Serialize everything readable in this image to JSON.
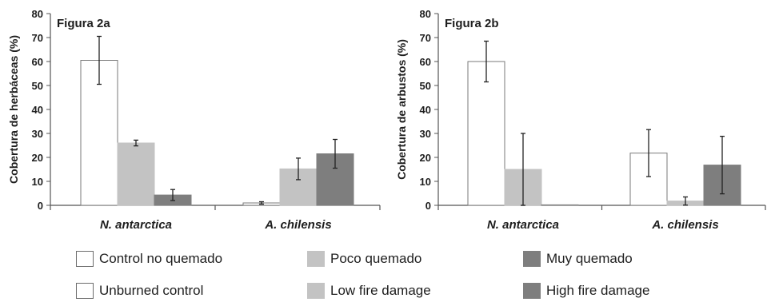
{
  "chart_data": [
    {
      "type": "bar",
      "title": "Figura 2a",
      "xlabel": "",
      "ylabel": "Cobertura de herbáceas (%)",
      "ylim": [
        0,
        80
      ],
      "yticks": [
        "0",
        "10",
        "20",
        "30",
        "40",
        "50",
        "60",
        "70",
        "80"
      ],
      "categories": [
        "N. antarctica",
        "A. chilensis"
      ],
      "series": [
        {
          "name": "Control no quemado",
          "values": [
            60.5,
            1.0
          ],
          "errors": [
            10.0,
            0.5
          ],
          "color": "#ffffff"
        },
        {
          "name": "Poco quemado",
          "values": [
            26.0,
            15.2
          ],
          "errors": [
            1.2,
            4.5
          ],
          "color": "#c3c3c3"
        },
        {
          "name": "Muy quemado",
          "values": [
            4.3,
            21.5
          ],
          "errors": [
            2.3,
            6.0
          ],
          "color": "#7e7e7e"
        }
      ],
      "grid": false
    },
    {
      "type": "bar",
      "title": "Figura 2b",
      "xlabel": "",
      "ylabel": "Cobertura de arbustos (%)",
      "ylim": [
        0,
        80
      ],
      "yticks": [
        "0",
        "10",
        "20",
        "30",
        "40",
        "50",
        "60",
        "70",
        "80"
      ],
      "categories": [
        "N. antarctica",
        "A. chilensis"
      ],
      "series": [
        {
          "name": "Control no quemado",
          "values": [
            60.0,
            21.8
          ],
          "errors": [
            8.5,
            9.8
          ],
          "color": "#ffffff"
        },
        {
          "name": "Poco quemado",
          "values": [
            15.0,
            1.8
          ],
          "errors": [
            15.0,
            1.7
          ],
          "color": "#c3c3c3"
        },
        {
          "name": "Muy quemado",
          "values": [
            0.2,
            16.8
          ],
          "errors": [
            0.0,
            12.0
          ],
          "color": "#7e7e7e"
        }
      ],
      "grid": false
    }
  ],
  "legend": [
    {
      "label": "Control no quemado",
      "color": "#ffffff"
    },
    {
      "label": "Poco quemado",
      "color": "#c3c3c3"
    },
    {
      "label": "Muy quemado",
      "color": "#7e7e7e"
    },
    {
      "label": "Unburned control",
      "color": "#ffffff"
    },
    {
      "label": "Low fire damage",
      "color": "#c3c3c3"
    },
    {
      "label": "High fire damage",
      "color": "#7e7e7e"
    }
  ]
}
